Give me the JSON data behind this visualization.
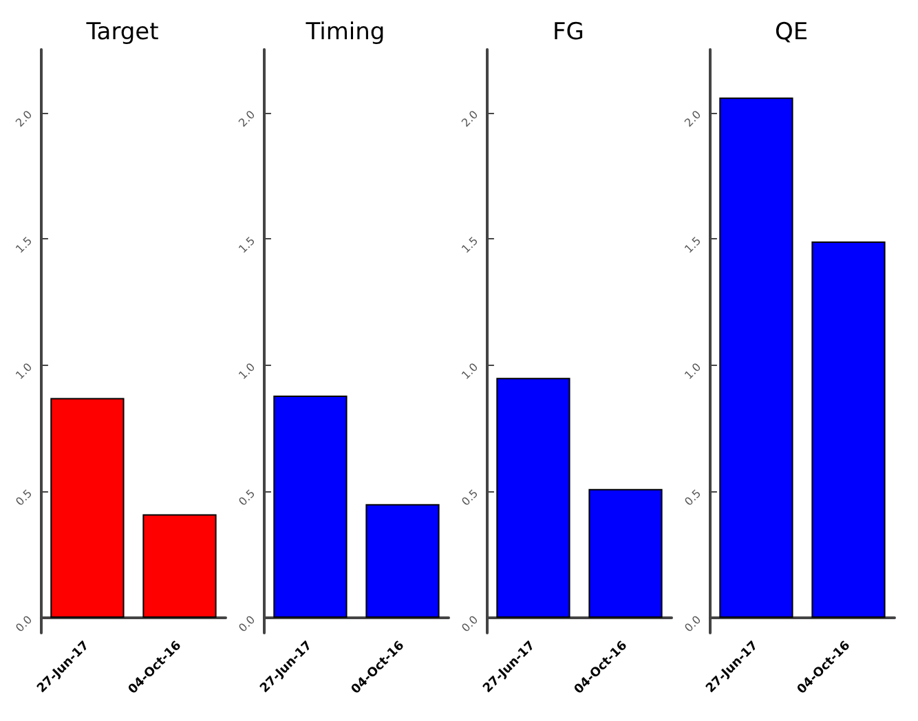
{
  "chart_data": [
    {
      "type": "bar",
      "title": "Target",
      "categories": [
        "27-Jun-17",
        "04-Oct-16"
      ],
      "values": [
        0.87,
        0.41
      ],
      "color": "#ff0000",
      "ylim": [
        -0.06,
        2.25
      ],
      "yticks": [
        {
          "value": 0,
          "label": "0.0"
        },
        {
          "value": 0.5,
          "label": "0.5"
        },
        {
          "value": 1,
          "label": "1.0"
        },
        {
          "value": 1.5,
          "label": "1.5"
        },
        {
          "value": 2,
          "label": "2.0"
        }
      ],
      "grid": false
    },
    {
      "type": "bar",
      "title": "Timing",
      "categories": [
        "27-Jun-17",
        "04-Oct-16"
      ],
      "values": [
        0.88,
        0.45
      ],
      "color": "#0000ff",
      "ylim": [
        -0.06,
        2.25
      ],
      "yticks": [
        {
          "value": 0,
          "label": "0.0"
        },
        {
          "value": 0.5,
          "label": "0.5"
        },
        {
          "value": 1,
          "label": "1.0"
        },
        {
          "value": 1.5,
          "label": "1.5"
        },
        {
          "value": 2,
          "label": "2.0"
        }
      ],
      "grid": false
    },
    {
      "type": "bar",
      "title": "FG",
      "categories": [
        "27-Jun-17",
        "04-Oct-16"
      ],
      "values": [
        0.95,
        0.51
      ],
      "color": "#0000ff",
      "ylim": [
        -0.06,
        2.25
      ],
      "yticks": [
        {
          "value": 0,
          "label": "0.0"
        },
        {
          "value": 0.5,
          "label": "0.5"
        },
        {
          "value": 1,
          "label": "1.0"
        },
        {
          "value": 1.5,
          "label": "1.5"
        },
        {
          "value": 2,
          "label": "2.0"
        }
      ],
      "grid": false
    },
    {
      "type": "bar",
      "title": "QE",
      "categories": [
        "27-Jun-17",
        "04-Oct-16"
      ],
      "values": [
        2.06,
        1.49
      ],
      "color": "#0000ff",
      "ylim": [
        -0.06,
        2.25
      ],
      "yticks": [
        {
          "value": 0,
          "label": "0.0"
        },
        {
          "value": 0.5,
          "label": "0.5"
        },
        {
          "value": 1,
          "label": "1.0"
        },
        {
          "value": 1.5,
          "label": "1.5"
        },
        {
          "value": 2,
          "label": "2.0"
        }
      ],
      "grid": false
    }
  ]
}
